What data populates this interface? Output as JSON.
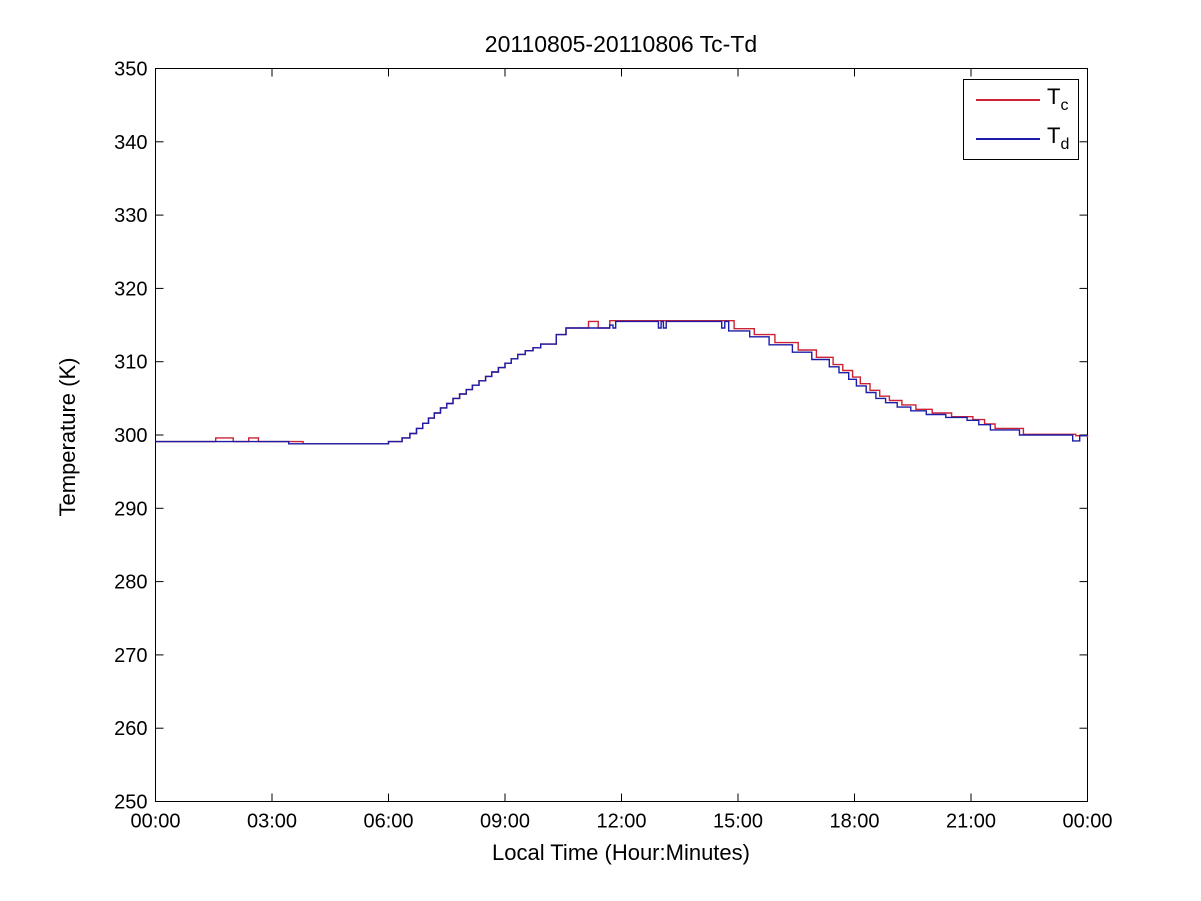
{
  "figure": {
    "background": "#ffffff",
    "frame_color": "#000000"
  },
  "chart_data": {
    "type": "line",
    "title": "20110805-20110806 Tc-Td",
    "xlabel": "Local Time (Hour:Minutes)",
    "ylabel": "Temperature (K)",
    "xlim_hours": [
      0,
      24
    ],
    "ylim": [
      250,
      350
    ],
    "x_tick_hours": [
      0,
      3,
      6,
      9,
      12,
      15,
      18,
      21,
      24
    ],
    "x_tick_labels": [
      "00:00",
      "03:00",
      "06:00",
      "09:00",
      "12:00",
      "15:00",
      "18:00",
      "21:00",
      "00:00"
    ],
    "y_ticks": [
      250,
      260,
      270,
      280,
      290,
      300,
      310,
      320,
      330,
      340,
      350
    ],
    "grid": false,
    "line_style": "steps-post",
    "legend": {
      "position": "top-right",
      "entries": [
        {
          "name": "Tc",
          "label_main": "T",
          "label_sub": "c",
          "color": "#cc2233"
        },
        {
          "name": "Td",
          "label_main": "T",
          "label_sub": "d",
          "color": "#1c1ca8"
        }
      ]
    },
    "series": [
      {
        "name": "Tc",
        "color": "#cc2233",
        "points": [
          [
            0.0,
            299.1
          ],
          [
            1.55,
            299.6
          ],
          [
            2.0,
            299.1
          ],
          [
            2.4,
            299.6
          ],
          [
            2.65,
            299.1
          ],
          [
            3.8,
            298.8
          ],
          [
            6.0,
            299.1
          ],
          [
            6.35,
            299.6
          ],
          [
            6.55,
            300.2
          ],
          [
            6.72,
            300.9
          ],
          [
            6.88,
            301.6
          ],
          [
            7.03,
            302.3
          ],
          [
            7.18,
            303.0
          ],
          [
            7.34,
            303.7
          ],
          [
            7.5,
            304.3
          ],
          [
            7.66,
            305.0
          ],
          [
            7.83,
            305.6
          ],
          [
            8.0,
            306.2
          ],
          [
            8.16,
            306.8
          ],
          [
            8.33,
            307.4
          ],
          [
            8.5,
            308.0
          ],
          [
            8.66,
            308.6
          ],
          [
            8.83,
            309.2
          ],
          [
            9.0,
            309.8
          ],
          [
            9.16,
            310.4
          ],
          [
            9.33,
            311.0
          ],
          [
            9.52,
            311.5
          ],
          [
            9.72,
            311.9
          ],
          [
            9.92,
            312.4
          ],
          [
            10.32,
            313.7
          ],
          [
            10.57,
            314.6
          ],
          [
            11.15,
            315.5
          ],
          [
            11.4,
            314.6
          ],
          [
            11.7,
            315.6
          ],
          [
            14.9,
            314.5
          ],
          [
            15.42,
            313.7
          ],
          [
            15.95,
            312.6
          ],
          [
            16.55,
            311.6
          ],
          [
            17.02,
            310.6
          ],
          [
            17.45,
            309.6
          ],
          [
            17.7,
            308.8
          ],
          [
            17.95,
            307.9
          ],
          [
            18.15,
            307.0
          ],
          [
            18.4,
            306.1
          ],
          [
            18.65,
            305.3
          ],
          [
            18.9,
            304.7
          ],
          [
            19.22,
            304.1
          ],
          [
            19.58,
            303.5
          ],
          [
            20.0,
            303.0
          ],
          [
            20.5,
            302.5
          ],
          [
            21.05,
            302.1
          ],
          [
            21.35,
            301.5
          ],
          [
            21.62,
            300.9
          ],
          [
            22.35,
            300.1
          ],
          [
            23.7,
            299.9
          ],
          [
            24.0,
            299.7
          ]
        ]
      },
      {
        "name": "Td",
        "color": "#1c1ca8",
        "points": [
          [
            0.0,
            299.1
          ],
          [
            3.43,
            298.8
          ],
          [
            6.0,
            299.1
          ],
          [
            6.35,
            299.6
          ],
          [
            6.55,
            300.2
          ],
          [
            6.72,
            300.9
          ],
          [
            6.88,
            301.6
          ],
          [
            7.03,
            302.3
          ],
          [
            7.18,
            303.0
          ],
          [
            7.34,
            303.7
          ],
          [
            7.5,
            304.3
          ],
          [
            7.66,
            305.0
          ],
          [
            7.83,
            305.6
          ],
          [
            8.0,
            306.2
          ],
          [
            8.16,
            306.8
          ],
          [
            8.33,
            307.4
          ],
          [
            8.5,
            308.0
          ],
          [
            8.66,
            308.6
          ],
          [
            8.83,
            309.2
          ],
          [
            9.0,
            309.8
          ],
          [
            9.16,
            310.4
          ],
          [
            9.33,
            311.0
          ],
          [
            9.52,
            311.5
          ],
          [
            9.72,
            311.9
          ],
          [
            9.92,
            312.4
          ],
          [
            10.32,
            313.7
          ],
          [
            10.57,
            314.6
          ],
          [
            11.7,
            315.0
          ],
          [
            11.78,
            314.6
          ],
          [
            11.85,
            315.5
          ],
          [
            12.95,
            314.6
          ],
          [
            13.02,
            315.5
          ],
          [
            13.08,
            314.6
          ],
          [
            13.15,
            315.5
          ],
          [
            14.58,
            314.6
          ],
          [
            14.66,
            315.5
          ],
          [
            14.76,
            314.2
          ],
          [
            15.3,
            313.4
          ],
          [
            15.8,
            312.3
          ],
          [
            16.4,
            311.3
          ],
          [
            16.9,
            310.3
          ],
          [
            17.35,
            309.3
          ],
          [
            17.6,
            308.5
          ],
          [
            17.85,
            307.6
          ],
          [
            18.05,
            306.7
          ],
          [
            18.3,
            305.8
          ],
          [
            18.55,
            305.0
          ],
          [
            18.8,
            304.4
          ],
          [
            19.1,
            303.8
          ],
          [
            19.45,
            303.3
          ],
          [
            19.85,
            302.8
          ],
          [
            20.35,
            302.4
          ],
          [
            20.9,
            302.0
          ],
          [
            21.2,
            301.4
          ],
          [
            21.5,
            300.7
          ],
          [
            22.25,
            300.0
          ],
          [
            23.62,
            299.2
          ],
          [
            23.8,
            299.9
          ],
          [
            24.0,
            299.9
          ]
        ]
      }
    ]
  }
}
